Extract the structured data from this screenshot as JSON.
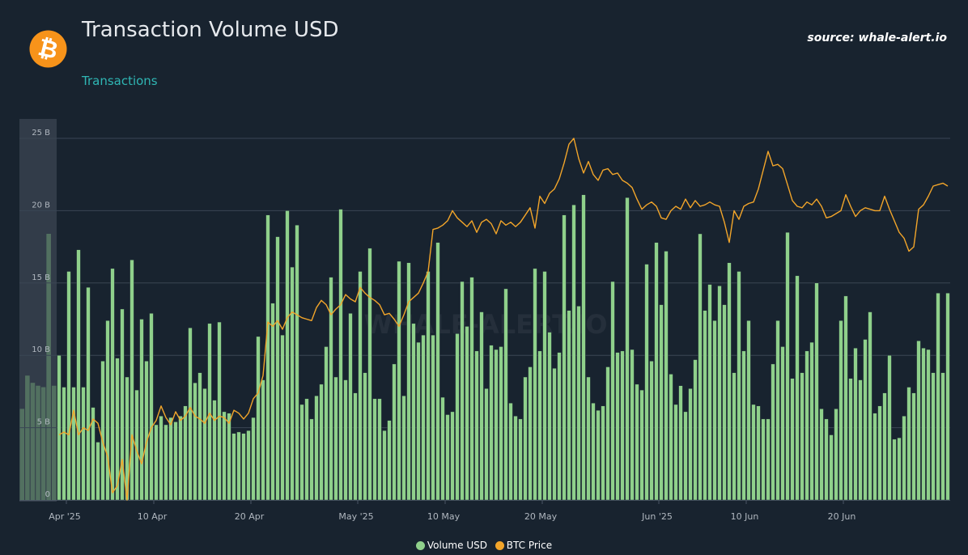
{
  "header": {
    "title": "Transaction Volume USD",
    "subtitle": "Transactions",
    "source": "source: whale-alert.io",
    "logo_symbol": "₿",
    "logo_icon": "bitcoin-logo-icon"
  },
  "watermark": "WHALE-ALERT.IO",
  "colors": {
    "background": "#18232f",
    "bars": "#8fd08b",
    "bar_stroke": "#1d2a35",
    "price_line": "#f2a52a",
    "grid": "#3a4654",
    "text": "#b0b7bf",
    "navigator": "#2a3542"
  },
  "chart_data": {
    "type": "bar",
    "title": "Transaction Volume USD",
    "subtitle": "Transactions",
    "y_axis": {
      "ticks": [
        "0",
        "5 B",
        "10 B",
        "15 B",
        "20 B",
        "25 B"
      ],
      "tick_values": [
        0,
        5,
        10,
        15,
        20,
        25
      ],
      "unit": "B USD",
      "ylim": [
        0,
        25
      ]
    },
    "x_axis": {
      "type": "datetime",
      "start_date": "2025-03-31",
      "interval_hours": 12,
      "tick_labels": [
        "Apr '25",
        "10 Apr",
        "20 Apr",
        "May '25",
        "10 May",
        "20 May",
        "Jun '25",
        "10 Jun",
        "20 Jun"
      ],
      "tick_dates": [
        "2025-04-01",
        "2025-04-10",
        "2025-04-20",
        "2025-05-01",
        "2025-05-10",
        "2025-05-20",
        "2025-06-01",
        "2025-06-10",
        "2025-06-20"
      ]
    },
    "grid": true,
    "legend_position": "bottom-center",
    "series": [
      {
        "name": "Volume USD",
        "type": "column",
        "values": [
          10.0,
          7.8,
          15.8,
          7.8,
          17.3,
          7.8,
          14.7,
          6.4,
          4.0,
          9.6,
          12.4,
          16.0,
          9.8,
          13.2,
          8.5,
          16.6,
          7.6,
          12.5,
          9.6,
          12.9,
          5.2,
          5.8,
          5.2,
          5.7,
          5.4,
          5.8,
          6.5,
          11.9,
          8.1,
          8.8,
          7.7,
          12.2,
          6.9,
          12.3,
          6.1,
          6.0,
          4.6,
          4.7,
          4.6,
          4.8,
          5.7,
          11.3,
          8.3,
          19.7,
          13.6,
          18.2,
          11.4,
          20.0,
          16.1,
          19.0,
          6.6,
          7.0,
          5.6,
          7.2,
          8.0,
          10.6,
          15.4,
          8.5,
          20.1,
          8.3,
          12.9,
          7.4,
          15.8,
          8.8,
          17.4,
          7.0,
          7.0,
          4.8,
          5.5,
          9.4,
          16.5,
          7.2,
          16.4,
          12.2,
          10.9,
          11.4,
          15.8,
          11.4,
          17.8,
          7.1,
          5.9,
          6.1,
          11.5,
          15.1,
          12.0,
          15.4,
          10.3,
          13.0,
          7.7,
          10.7,
          10.4,
          10.6,
          14.6,
          6.7,
          5.8,
          5.6,
          8.5,
          9.2,
          16.0,
          10.3,
          15.8,
          11.6,
          9.1,
          10.2,
          19.7,
          13.1,
          20.4,
          13.4,
          21.1,
          8.5,
          6.7,
          6.2,
          6.5,
          9.2,
          15.1,
          10.2,
          10.3,
          20.9,
          10.4,
          8.0,
          7.6,
          16.3,
          9.6,
          17.8,
          13.5,
          17.2,
          8.7,
          6.6,
          7.9,
          6.1,
          7.7,
          9.7,
          18.4,
          13.1,
          14.9,
          12.4,
          14.8,
          13.5,
          16.4,
          8.8,
          15.8,
          10.3,
          12.4,
          6.6,
          6.5,
          5.6,
          5.6,
          9.4,
          12.4,
          10.6,
          18.5,
          8.4,
          15.5,
          8.8,
          10.3,
          10.9,
          15.0,
          6.3,
          5.6,
          4.5,
          6.3,
          12.4,
          14.1,
          8.4,
          10.5,
          8.3,
          11.1,
          13.0,
          6.0,
          6.5,
          7.4,
          10.0,
          4.2,
          4.3,
          5.8,
          7.8,
          7.4,
          11.0,
          10.5,
          10.4,
          8.8,
          14.3,
          8.8,
          14.3
        ]
      },
      {
        "name": "BTC Price",
        "type": "line",
        "values": [
          4.5,
          4.7,
          4.5,
          6.2,
          4.5,
          5.0,
          4.8,
          5.6,
          5.3,
          4.0,
          3.0,
          0.5,
          1.0,
          2.8,
          0.0,
          4.5,
          3.4,
          2.5,
          4.0,
          5.0,
          5.5,
          6.5,
          5.7,
          5.2,
          6.1,
          5.5,
          5.8,
          6.4,
          5.8,
          5.6,
          5.3,
          6.0,
          5.5,
          5.8,
          5.7,
          5.3,
          6.2,
          6.0,
          5.6,
          6.0,
          7.0,
          7.4,
          8.6,
          12.3,
          12.0,
          12.4,
          11.8,
          12.6,
          13.0,
          12.8,
          12.6,
          12.5,
          12.4,
          13.3,
          13.8,
          13.5,
          12.8,
          13.2,
          13.5,
          14.2,
          13.9,
          13.7,
          14.7,
          14.3,
          14.0,
          13.8,
          13.5,
          12.8,
          12.9,
          12.5,
          12.0,
          12.8,
          13.7,
          14.0,
          14.3,
          15.0,
          15.8,
          18.7,
          18.8,
          19.0,
          19.3,
          20.0,
          19.5,
          19.2,
          18.9,
          19.3,
          18.5,
          19.2,
          19.4,
          19.1,
          18.4,
          19.3,
          19.0,
          19.2,
          18.9,
          19.2,
          19.7,
          20.2,
          18.8,
          21.0,
          20.5,
          21.2,
          21.5,
          22.2,
          23.3,
          24.6,
          25.0,
          23.6,
          22.6,
          23.4,
          22.5,
          22.1,
          22.8,
          22.9,
          22.5,
          22.6,
          22.1,
          21.9,
          21.6,
          20.8,
          20.1,
          20.4,
          20.6,
          20.3,
          19.5,
          19.4,
          20.0,
          20.3,
          20.1,
          20.8,
          20.2,
          20.7,
          20.3,
          20.4,
          20.6,
          20.4,
          20.3,
          19.2,
          17.8,
          20.0,
          19.4,
          20.3,
          20.5,
          20.6,
          21.5,
          22.8,
          24.1,
          23.1,
          23.2,
          22.9,
          21.8,
          20.7,
          20.3,
          20.2,
          20.6,
          20.4,
          20.8,
          20.3,
          19.5,
          19.6,
          19.8,
          20.0,
          21.1,
          20.3,
          19.6,
          20.0,
          20.2,
          20.1,
          20.0,
          20.0,
          21.0,
          20.1,
          19.3,
          18.5,
          18.1,
          17.2,
          17.5,
          20.1,
          20.4,
          21.0,
          21.7,
          21.8,
          21.9,
          21.7
        ]
      }
    ],
    "navigator_series": {
      "name": "Volume USD",
      "values": [
        6.3,
        8.6,
        8.1,
        7.9,
        7.8,
        18.4,
        7.9
      ]
    }
  },
  "legend": {
    "items": [
      {
        "label": "Volume USD",
        "color": "#8fd08b"
      },
      {
        "label": "BTC Price",
        "color": "#f2a52a"
      }
    ]
  }
}
